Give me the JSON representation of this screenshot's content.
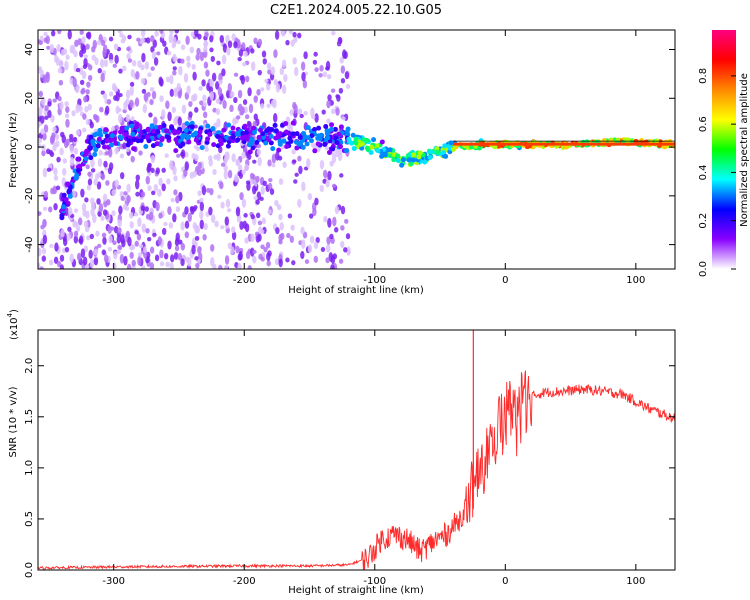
{
  "title": "C2E1.2024.005.22.10.G05",
  "colors": {
    "spectrum_scatter": "#8a2be2",
    "snr_line": "#ff2a2a",
    "frame": "#000000"
  },
  "colorbar": {
    "label": "Normalized spectral amplitude",
    "ticks": [
      "0.0",
      "0.2",
      "0.4",
      "0.6",
      "0.8"
    ],
    "stops": [
      "#ffffff",
      "#8800ff",
      "#0000ff",
      "#00ffff",
      "#00ff00",
      "#ffff00",
      "#ff8800",
      "#ff0000",
      "#ff0080"
    ]
  },
  "chart_data": [
    {
      "type": "heatmap",
      "title": "",
      "xlabel": "Height of straight line (km)",
      "ylabel": "Frequency (Hz)",
      "xlim": [
        -358,
        130
      ],
      "ylim": [
        -50,
        48
      ],
      "xticks": [
        "-300",
        "-200",
        "-100",
        "0",
        "100"
      ],
      "xtick_values": [
        -300,
        -200,
        -100,
        0,
        100
      ],
      "yticks": [
        "-40",
        "-20",
        "0",
        "20",
        "40"
      ],
      "ytick_values": [
        -40,
        -20,
        0,
        20,
        40
      ],
      "noise_region_x": [
        -358,
        -120
      ],
      "ridge_x": [
        -340,
        -320,
        -300,
        -250,
        -200,
        -150,
        -120,
        -100,
        -80,
        -60,
        -40,
        -20,
        0,
        50,
        80,
        95,
        130
      ],
      "ridge_y": [
        -26,
        0,
        5,
        5,
        4,
        4,
        3,
        0,
        -5,
        -4,
        0,
        1,
        1,
        1,
        2,
        2,
        1
      ]
    },
    {
      "type": "line",
      "title": "",
      "xlabel": "Height of straight line (km)",
      "ylabel": "SNR (10 * v/v)",
      "multiplier": "(x10",
      "multiplier_exp": "4",
      "multiplier_close": ")",
      "xlim": [
        -358,
        130
      ],
      "ylim": [
        0,
        2.35
      ],
      "xticks": [
        "-300",
        "-200",
        "-100",
        "0",
        "100"
      ],
      "xtick_values": [
        -300,
        -200,
        -100,
        0,
        100
      ],
      "yticks": [
        "0.0",
        "0.5",
        "1.0",
        "1.5",
        "2.0"
      ],
      "ytick_values": [
        0,
        0.5,
        1.0,
        1.5,
        2.0
      ],
      "x": [
        -358,
        -300,
        -200,
        -150,
        -120,
        -105,
        -95,
        -85,
        -75,
        -65,
        -55,
        -45,
        -35,
        -30,
        -25,
        -22,
        -20,
        -15,
        -10,
        -5,
        0,
        10,
        20,
        30,
        45,
        60,
        75,
        90,
        100,
        110,
        120,
        130
      ],
      "y": [
        0.02,
        0.03,
        0.04,
        0.04,
        0.05,
        0.12,
        0.3,
        0.35,
        0.3,
        0.18,
        0.28,
        0.35,
        0.5,
        0.62,
        0.8,
        0.85,
        1.0,
        1.1,
        1.3,
        1.45,
        1.58,
        1.65,
        1.7,
        1.74,
        1.75,
        1.77,
        1.75,
        1.72,
        1.65,
        1.58,
        1.53,
        1.48
      ],
      "spike": {
        "x": -24.5,
        "y": 2.35
      }
    }
  ]
}
